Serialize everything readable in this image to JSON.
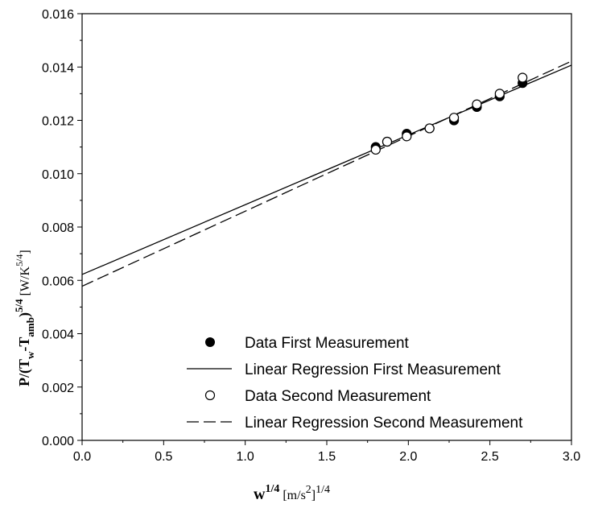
{
  "chart_data": {
    "type": "scatter",
    "xlim": [
      0.0,
      3.0
    ],
    "ylim": [
      0.0,
      0.016
    ],
    "x_ticks": [
      "0.0",
      "0.5",
      "1.0",
      "1.5",
      "2.0",
      "2.5",
      "3.0"
    ],
    "y_ticks": [
      "0.000",
      "0.002",
      "0.004",
      "0.006",
      "0.008",
      "0.010",
      "0.012",
      "0.014",
      "0.016"
    ],
    "xlabel": {
      "main": "w",
      "sup": "1/4",
      "unit_open": " [m/s",
      "unit_sup": "2",
      "unit_close": "]",
      "unit_exp": "1/4"
    },
    "ylabel": {
      "p": "P/(T",
      "w": "w",
      "dash": "-T",
      "amb": "amb",
      "close": ")",
      "exp": "5/4",
      "unit": " [W/K",
      "unit_exp": "5/4",
      "unit_close": "]"
    },
    "legend": [
      "Data First Measurement",
      "Linear Regression First Measurement",
      "Data Second Measurement",
      "Linear Regression Second Measurement"
    ],
    "series": [
      {
        "name": "Data First Measurement",
        "kind": "points",
        "marker": "filled-circle",
        "x": [
          1.8,
          1.87,
          1.99,
          2.13,
          2.28,
          2.42,
          2.56,
          2.7
        ],
        "y": [
          0.011,
          0.0112,
          0.0115,
          0.0117,
          0.012,
          0.0125,
          0.0129,
          0.0134
        ]
      },
      {
        "name": "Linear Regression First Measurement",
        "kind": "line",
        "dash": "solid",
        "x": [
          0.0,
          3.0
        ],
        "y": [
          0.00622,
          0.01407
        ]
      },
      {
        "name": "Data Second Measurement",
        "kind": "points",
        "marker": "open-circle",
        "x": [
          1.8,
          1.87,
          1.99,
          2.13,
          2.28,
          2.42,
          2.56,
          2.7
        ],
        "y": [
          0.0109,
          0.0112,
          0.0114,
          0.0117,
          0.0121,
          0.0126,
          0.013,
          0.0136
        ]
      },
      {
        "name": "Linear Regression Second Measurement",
        "kind": "line",
        "dash": "dashed",
        "x": [
          0.0,
          3.0
        ],
        "y": [
          0.00578,
          0.01422
        ]
      }
    ]
  }
}
